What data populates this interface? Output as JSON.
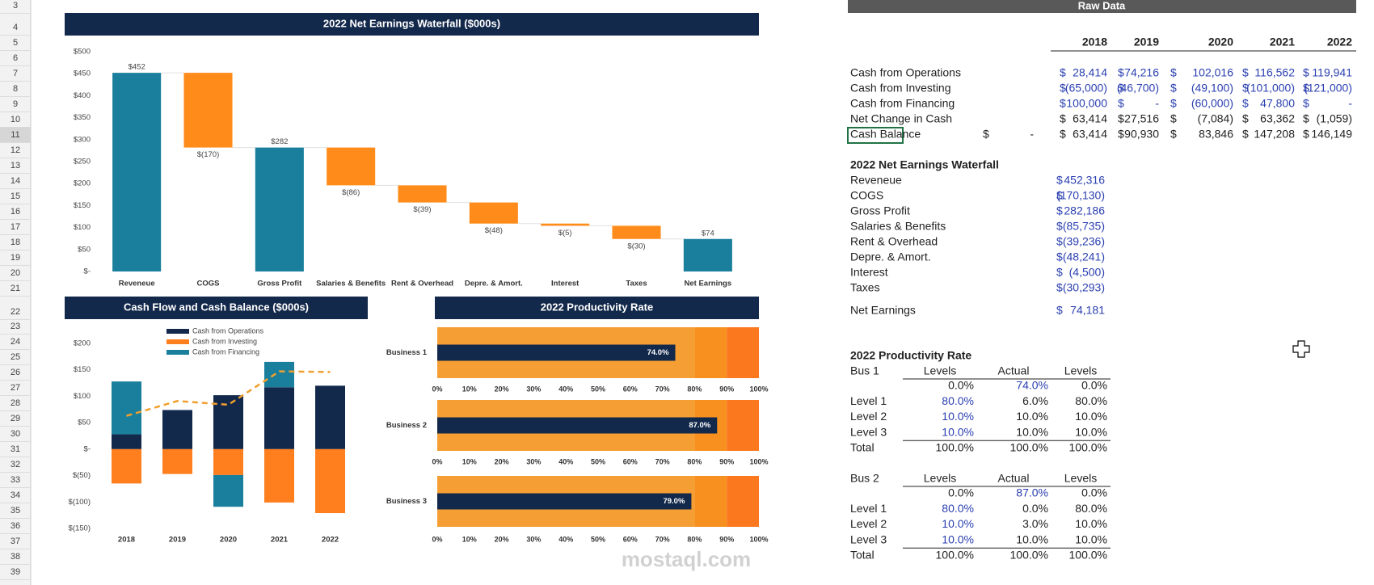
{
  "row_headers": [
    3,
    4,
    5,
    6,
    7,
    8,
    9,
    10,
    11,
    12,
    13,
    14,
    15,
    16,
    17,
    18,
    19,
    20,
    21,
    22,
    23,
    24,
    25,
    26,
    27,
    28,
    29,
    30,
    31,
    32,
    33,
    34,
    35,
    36,
    37,
    38,
    39
  ],
  "chart_data": [
    {
      "type": "waterfall",
      "title": "2022 Net Earnings Waterfall ($000s)",
      "categories": [
        "Reveneue",
        "COGS",
        "Gross Profit",
        "Salaries & Benefits",
        "Rent & Overhead",
        "Depre. & Amort.",
        "Interest",
        "Taxes",
        "Net Earnings"
      ],
      "values": [
        452,
        -170,
        282,
        -86,
        -39,
        -48,
        -5,
        -30,
        74
      ],
      "value_labels": [
        "$452",
        "$(170)",
        "$282",
        "$(86)",
        "$(39)",
        "$(48)",
        "$(5)",
        "$(30)",
        "$74"
      ],
      "totals": [
        true,
        false,
        true,
        false,
        false,
        false,
        false,
        false,
        true
      ],
      "total_color": "#1a7f9c",
      "decrease_color": "#ff8c1a",
      "ylim": [
        0,
        500
      ],
      "yticks": [
        {
          "value": 0,
          "label": "$-"
        },
        {
          "value": 50,
          "label": "$50"
        },
        {
          "value": 100,
          "label": "$100"
        },
        {
          "value": 150,
          "label": "$150"
        },
        {
          "value": 200,
          "label": "$200"
        },
        {
          "value": 250,
          "label": "$250"
        },
        {
          "value": 300,
          "label": "$300"
        },
        {
          "value": 350,
          "label": "$350"
        },
        {
          "value": 400,
          "label": "$400"
        },
        {
          "value": 450,
          "label": "$450"
        },
        {
          "value": 500,
          "label": "$500"
        }
      ]
    },
    {
      "type": "stacked_bar_line",
      "title": "Cash Flow and Cash Balance ($000s)",
      "categories": [
        "2018",
        "2019",
        "2020",
        "2021",
        "2022"
      ],
      "series": [
        {
          "name": "Cash from Operations",
          "color": "#13294b",
          "values": [
            28,
            74,
            102,
            117,
            120
          ]
        },
        {
          "name": "Cash from Investing",
          "color": "#ff7f1f",
          "values": [
            -65,
            -47,
            -49,
            -101,
            -121
          ]
        },
        {
          "name": "Cash from Financing",
          "color": "#1a7f9c",
          "values": [
            100,
            0,
            -60,
            48,
            0
          ]
        }
      ],
      "line": {
        "color": "#f0a030",
        "values": [
          63,
          91,
          84,
          147,
          146
        ]
      },
      "ylim": [
        -150,
        200
      ],
      "yticks": [
        {
          "value": -150,
          "label": "$(150)"
        },
        {
          "value": -100,
          "label": "$(100)"
        },
        {
          "value": -50,
          "label": "$(50)"
        },
        {
          "value": 0,
          "label": "$-"
        },
        {
          "value": 50,
          "label": "$50"
        },
        {
          "value": 100,
          "label": "$100"
        },
        {
          "value": 150,
          "label": "$150"
        },
        {
          "value": 200,
          "label": "$200"
        }
      ]
    },
    {
      "type": "bullet",
      "title": "2022 Productivity Rate",
      "categories": [
        "Business 1",
        "Business 2",
        "Business 3"
      ],
      "values": [
        74,
        87,
        79
      ],
      "value_labels": [
        "74.0%",
        "87.0%",
        "79.0%"
      ],
      "color": "#13294b",
      "bands": [
        {
          "color": "#f59e33",
          "values": [
            80,
            80,
            80
          ]
        },
        {
          "color": "#f8901f",
          "values": [
            10,
            10,
            10
          ]
        },
        {
          "color": "#fb781f",
          "values": [
            10,
            10,
            10
          ]
        }
      ],
      "xlim": [
        0,
        100
      ],
      "xticks": [
        {
          "value": 0,
          "label": "0%"
        },
        {
          "value": 10,
          "label": "10%"
        },
        {
          "value": 20,
          "label": "20%"
        },
        {
          "value": 30,
          "label": "30%"
        },
        {
          "value": 40,
          "label": "40%"
        },
        {
          "value": 50,
          "label": "50%"
        },
        {
          "value": 60,
          "label": "60%"
        },
        {
          "value": 70,
          "label": "70%"
        },
        {
          "value": 80,
          "label": "80%"
        },
        {
          "value": 90,
          "label": "90%"
        },
        {
          "value": 100,
          "label": "100%"
        }
      ]
    }
  ],
  "raw_data": {
    "title": "Raw Data",
    "cash_flow": {
      "years": [
        "2018",
        "2019",
        "2020",
        "2021",
        "2022"
      ],
      "rows": [
        {
          "label": "Cash from Operations",
          "cells": [
            {
              "sym": "$",
              "num": "28,414"
            },
            {
              "sym": "$",
              "num": "74,216"
            },
            {
              "sym": "$",
              "num": "102,016"
            },
            {
              "sym": "$",
              "num": "116,562"
            },
            {
              "sym": "$",
              "num": "119,941"
            }
          ]
        },
        {
          "label": "Cash from Investing",
          "cells": [
            {
              "sym": "$",
              "num": "(65,000)"
            },
            {
              "sym": "$",
              "num": "(46,700)"
            },
            {
              "sym": "$",
              "num": "(49,100)"
            },
            {
              "sym": "$",
              "num": "(101,000)"
            },
            {
              "sym": "$",
              "num": "(121,000)"
            }
          ]
        },
        {
          "label": "Cash from Financing",
          "cells": [
            {
              "sym": "$",
              "num": "100,000"
            },
            {
              "sym": "$",
              "num": "-"
            },
            {
              "sym": "$",
              "num": "(60,000)"
            },
            {
              "sym": "$",
              "num": "47,800"
            },
            {
              "sym": "$",
              "num": "-"
            }
          ]
        },
        {
          "label": "Net Change in Cash",
          "cells": [
            {
              "sym": "$",
              "num": "63,414"
            },
            {
              "sym": "$",
              "num": "27,516"
            },
            {
              "sym": "$",
              "num": "(7,084)"
            },
            {
              "sym": "$",
              "num": "63,362"
            },
            {
              "sym": "$",
              "num": "(1,059)"
            }
          ]
        },
        {
          "label": "Cash Balance",
          "opening": {
            "sym": "$",
            "num": "-"
          },
          "cells": [
            {
              "sym": "$",
              "num": "63,414"
            },
            {
              "sym": "$",
              "num": "90,930"
            },
            {
              "sym": "$",
              "num": "83,846"
            },
            {
              "sym": "$",
              "num": "147,208"
            },
            {
              "sym": "$",
              "num": "146,149"
            }
          ]
        }
      ]
    },
    "waterfall": {
      "title": "2022 Net Earnings Waterfall",
      "rows": [
        {
          "label": "Reveneue",
          "sym": "$",
          "num": "452,316"
        },
        {
          "label": "COGS",
          "sym": "$",
          "num": "(170,130)"
        },
        {
          "label": "Gross Profit",
          "sym": "$",
          "num": "282,186"
        },
        {
          "label": "Salaries & Benefits",
          "sym": "$",
          "num": "(85,735)"
        },
        {
          "label": "Rent & Overhead",
          "sym": "$",
          "num": "(39,236)"
        },
        {
          "label": "Depre. & Amort.",
          "sym": "$",
          "num": "(48,241)"
        },
        {
          "label": "Interest",
          "sym": "$",
          "num": "(4,500)"
        },
        {
          "label": "Taxes",
          "sym": "$",
          "num": "(30,293)"
        },
        {
          "label": "Net Earnings",
          "sym": "$",
          "num": "74,181"
        }
      ]
    },
    "productivity": {
      "title": "2022 Productivity Rate",
      "blocks": [
        {
          "name": "Bus 1",
          "headers": [
            "Levels",
            "Actual",
            "Levels"
          ],
          "rows": [
            {
              "label": null,
              "cells": [
                "0.0%",
                "74.0%",
                "0.0%"
              ]
            },
            {
              "label": "Level 1",
              "cells": [
                "80.0%",
                "6.0%",
                "80.0%"
              ]
            },
            {
              "label": "Level 2",
              "cells": [
                "10.0%",
                "10.0%",
                "10.0%"
              ]
            },
            {
              "label": "Level 3",
              "cells": [
                "10.0%",
                "10.0%",
                "10.0%"
              ]
            },
            {
              "label": "Total",
              "cells": [
                "100.0%",
                "100.0%",
                "100.0%"
              ]
            }
          ]
        },
        {
          "name": "Bus 2",
          "headers": [
            "Levels",
            "Actual",
            "Levels"
          ],
          "rows": [
            {
              "label": null,
              "cells": [
                "0.0%",
                "87.0%",
                "0.0%"
              ]
            },
            {
              "label": "Level 1",
              "cells": [
                "80.0%",
                "0.0%",
                "80.0%"
              ]
            },
            {
              "label": "Level 2",
              "cells": [
                "10.0%",
                "3.0%",
                "10.0%"
              ]
            },
            {
              "label": "Level 3",
              "cells": [
                "10.0%",
                "10.0%",
                "10.0%"
              ]
            },
            {
              "label": "Total",
              "cells": [
                "100.0%",
                "100.0%",
                "100.0%"
              ]
            }
          ]
        }
      ]
    }
  },
  "watermark": "mostaql.com"
}
